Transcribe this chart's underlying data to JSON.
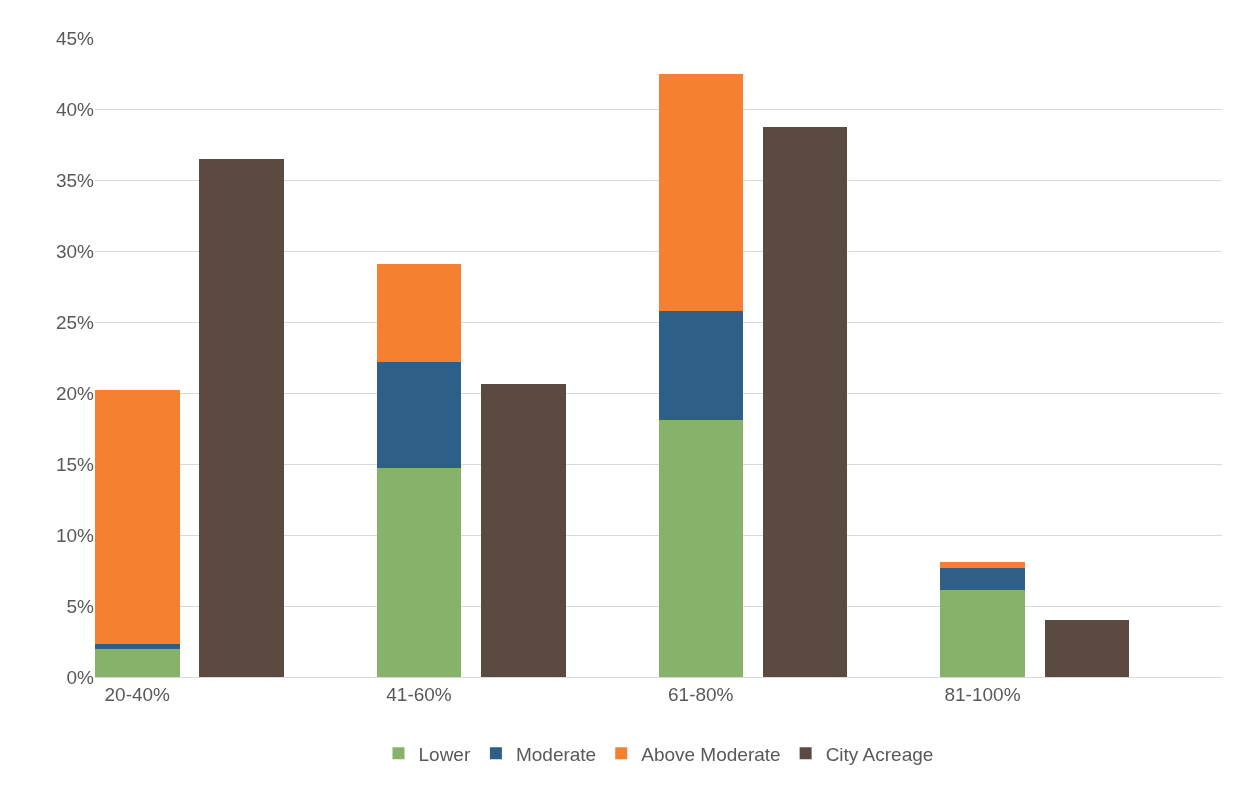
{
  "chart_data": {
    "type": "bar",
    "stacked": true,
    "categories": [
      "20-40%",
      null,
      "41-60%",
      null,
      "61-80%",
      null,
      "81-100%",
      null
    ],
    "series": [
      {
        "name": "Lower",
        "color": "#86b26a",
        "values": [
          2.0,
          null,
          14.7,
          null,
          18.1,
          null,
          6.1,
          null
        ]
      },
      {
        "name": "Moderate",
        "color": "#2e6087",
        "values": [
          0.3,
          null,
          7.5,
          null,
          7.7,
          null,
          1.6,
          null
        ]
      },
      {
        "name": "Above Moderate",
        "color": "#f58030",
        "values": [
          17.9,
          null,
          6.9,
          null,
          16.7,
          null,
          0.4,
          null
        ]
      },
      {
        "name": "City Acreage",
        "color": "#5b4a42",
        "values": [
          null,
          36.5,
          null,
          20.6,
          null,
          38.7,
          null,
          4.0
        ]
      }
    ],
    "ylim": [
      0,
      45
    ],
    "yticks": [
      {
        "value": 0,
        "label": "0%"
      },
      {
        "value": 5,
        "label": "5%"
      },
      {
        "value": 10,
        "label": "10%"
      },
      {
        "value": 15,
        "label": "15%"
      },
      {
        "value": 20,
        "label": "20%"
      },
      {
        "value": 25,
        "label": "25%"
      },
      {
        "value": 30,
        "label": "30%"
      },
      {
        "value": 35,
        "label": "35%"
      },
      {
        "value": 40,
        "label": "40%"
      },
      {
        "value": 45,
        "label": "45%"
      }
    ],
    "grid": "y",
    "legend": "bottom"
  }
}
